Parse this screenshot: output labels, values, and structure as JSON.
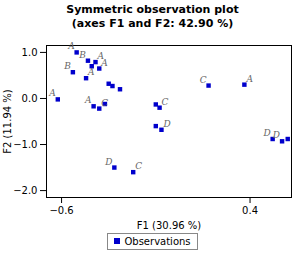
{
  "chart_data": {
    "type": "scatter",
    "title": "Symmetric observation plot\n(axes F1 and F2: 42.90 %)",
    "xlabel": "F1 (30.96 %)",
    "ylabel": "F2 (11.94 %)",
    "xlim": [
      -0.68,
      0.62
    ],
    "ylim": [
      -2.15,
      1.15
    ],
    "xticks": [
      -0.6,
      0.4
    ],
    "yticks": [
      -2,
      -1,
      0,
      1
    ],
    "legend": "bottom",
    "series": [
      {
        "name": "Observations",
        "color": "#0000cc",
        "marker": "square",
        "points": [
          {
            "x": -0.52,
            "y": 1.0,
            "label": "A"
          },
          {
            "x": -0.46,
            "y": 0.82,
            "label": "B"
          },
          {
            "x": -0.42,
            "y": 0.79,
            "label": "A"
          },
          {
            "x": -0.44,
            "y": 0.7
          },
          {
            "x": -0.4,
            "y": 0.65,
            "label": "A"
          },
          {
            "x": -0.54,
            "y": 0.57,
            "label": "B"
          },
          {
            "x": -0.47,
            "y": 0.44,
            "label": "A"
          },
          {
            "x": -0.35,
            "y": 0.32
          },
          {
            "x": -0.33,
            "y": 0.27
          },
          {
            "x": -0.29,
            "y": 0.2
          },
          {
            "x": 0.18,
            "y": 0.28,
            "label": "C"
          },
          {
            "x": 0.37,
            "y": 0.3,
            "label": "A"
          },
          {
            "x": -0.62,
            "y": -0.02,
            "label": "A"
          },
          {
            "x": -0.43,
            "y": -0.17,
            "label": "A"
          },
          {
            "x": -0.4,
            "y": -0.22,
            "label": "C"
          },
          {
            "x": -0.37,
            "y": -0.12
          },
          {
            "x": -0.08,
            "y": -0.2,
            "label": "C"
          },
          {
            "x": -0.1,
            "y": -0.13
          },
          {
            "x": -0.07,
            "y": -0.68,
            "label": "D"
          },
          {
            "x": -0.1,
            "y": -0.6
          },
          {
            "x": -0.32,
            "y": -1.5,
            "label": "D"
          },
          {
            "x": -0.22,
            "y": -1.6,
            "label": "C"
          },
          {
            "x": 0.52,
            "y": -0.88,
            "label": "D"
          },
          {
            "x": 0.57,
            "y": -0.93,
            "label": "D"
          },
          {
            "x": 0.6,
            "y": -0.88
          }
        ]
      }
    ]
  }
}
